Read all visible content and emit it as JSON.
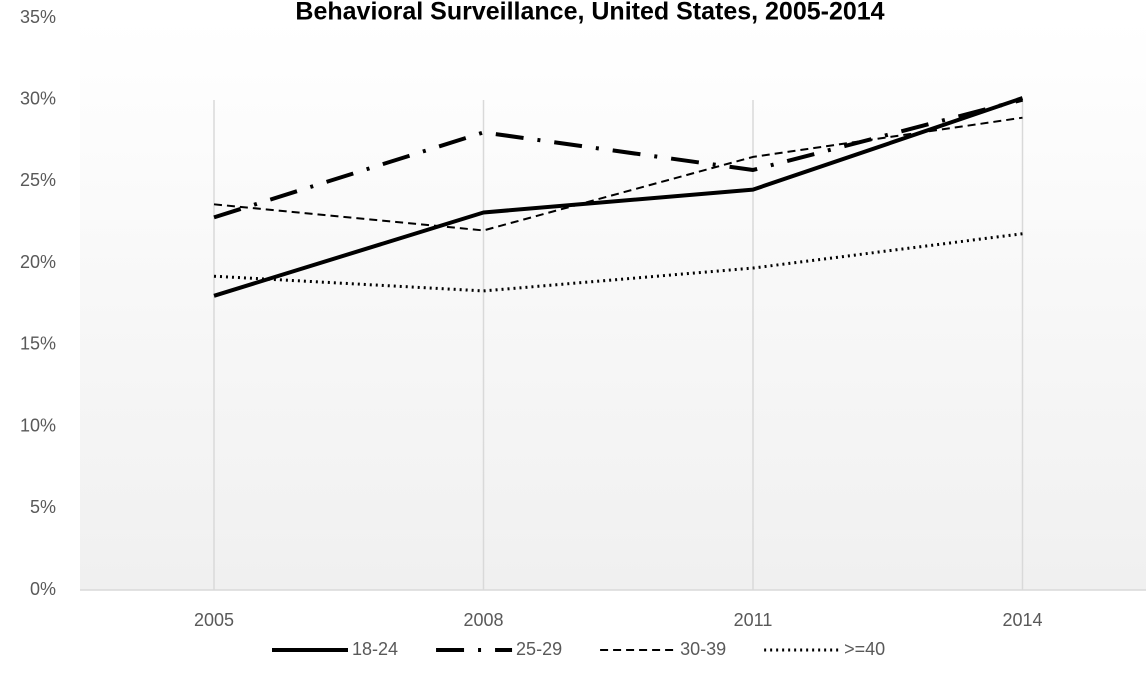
{
  "chart_data": {
    "type": "line",
    "title": "Behavioral Surveillance, United States, 2005-2014",
    "categories": [
      "2005",
      "2008",
      "2011",
      "2014"
    ],
    "series": [
      {
        "name": "18-24",
        "color": "#000000",
        "dash": "solid",
        "values": [
          18.0,
          23.1,
          24.5,
          30.1
        ]
      },
      {
        "name": "25-29",
        "color": "#000000",
        "dash": "dashdot",
        "values": [
          22.8,
          28.0,
          25.7,
          30.0
        ]
      },
      {
        "name": "30-39",
        "color": "#000000",
        "dash": "dash",
        "values": [
          23.6,
          22.0,
          26.5,
          28.9
        ]
      },
      {
        "name": ">=40",
        "color": "#000000",
        "dash": "dot",
        "values": [
          19.2,
          18.3,
          19.7,
          21.8
        ]
      }
    ],
    "ylim": [
      0,
      35
    ],
    "yticks": [
      {
        "value": 0,
        "label": "0%"
      },
      {
        "value": 5,
        "label": "5%"
      },
      {
        "value": 10,
        "label": "10%"
      },
      {
        "value": 15,
        "label": "15%"
      },
      {
        "value": 20,
        "label": "20%"
      },
      {
        "value": 25,
        "label": "25%"
      },
      {
        "value": 30,
        "label": "30%"
      },
      {
        "value": 35,
        "label": "35%"
      }
    ],
    "grid": true,
    "legend": "bottom"
  }
}
